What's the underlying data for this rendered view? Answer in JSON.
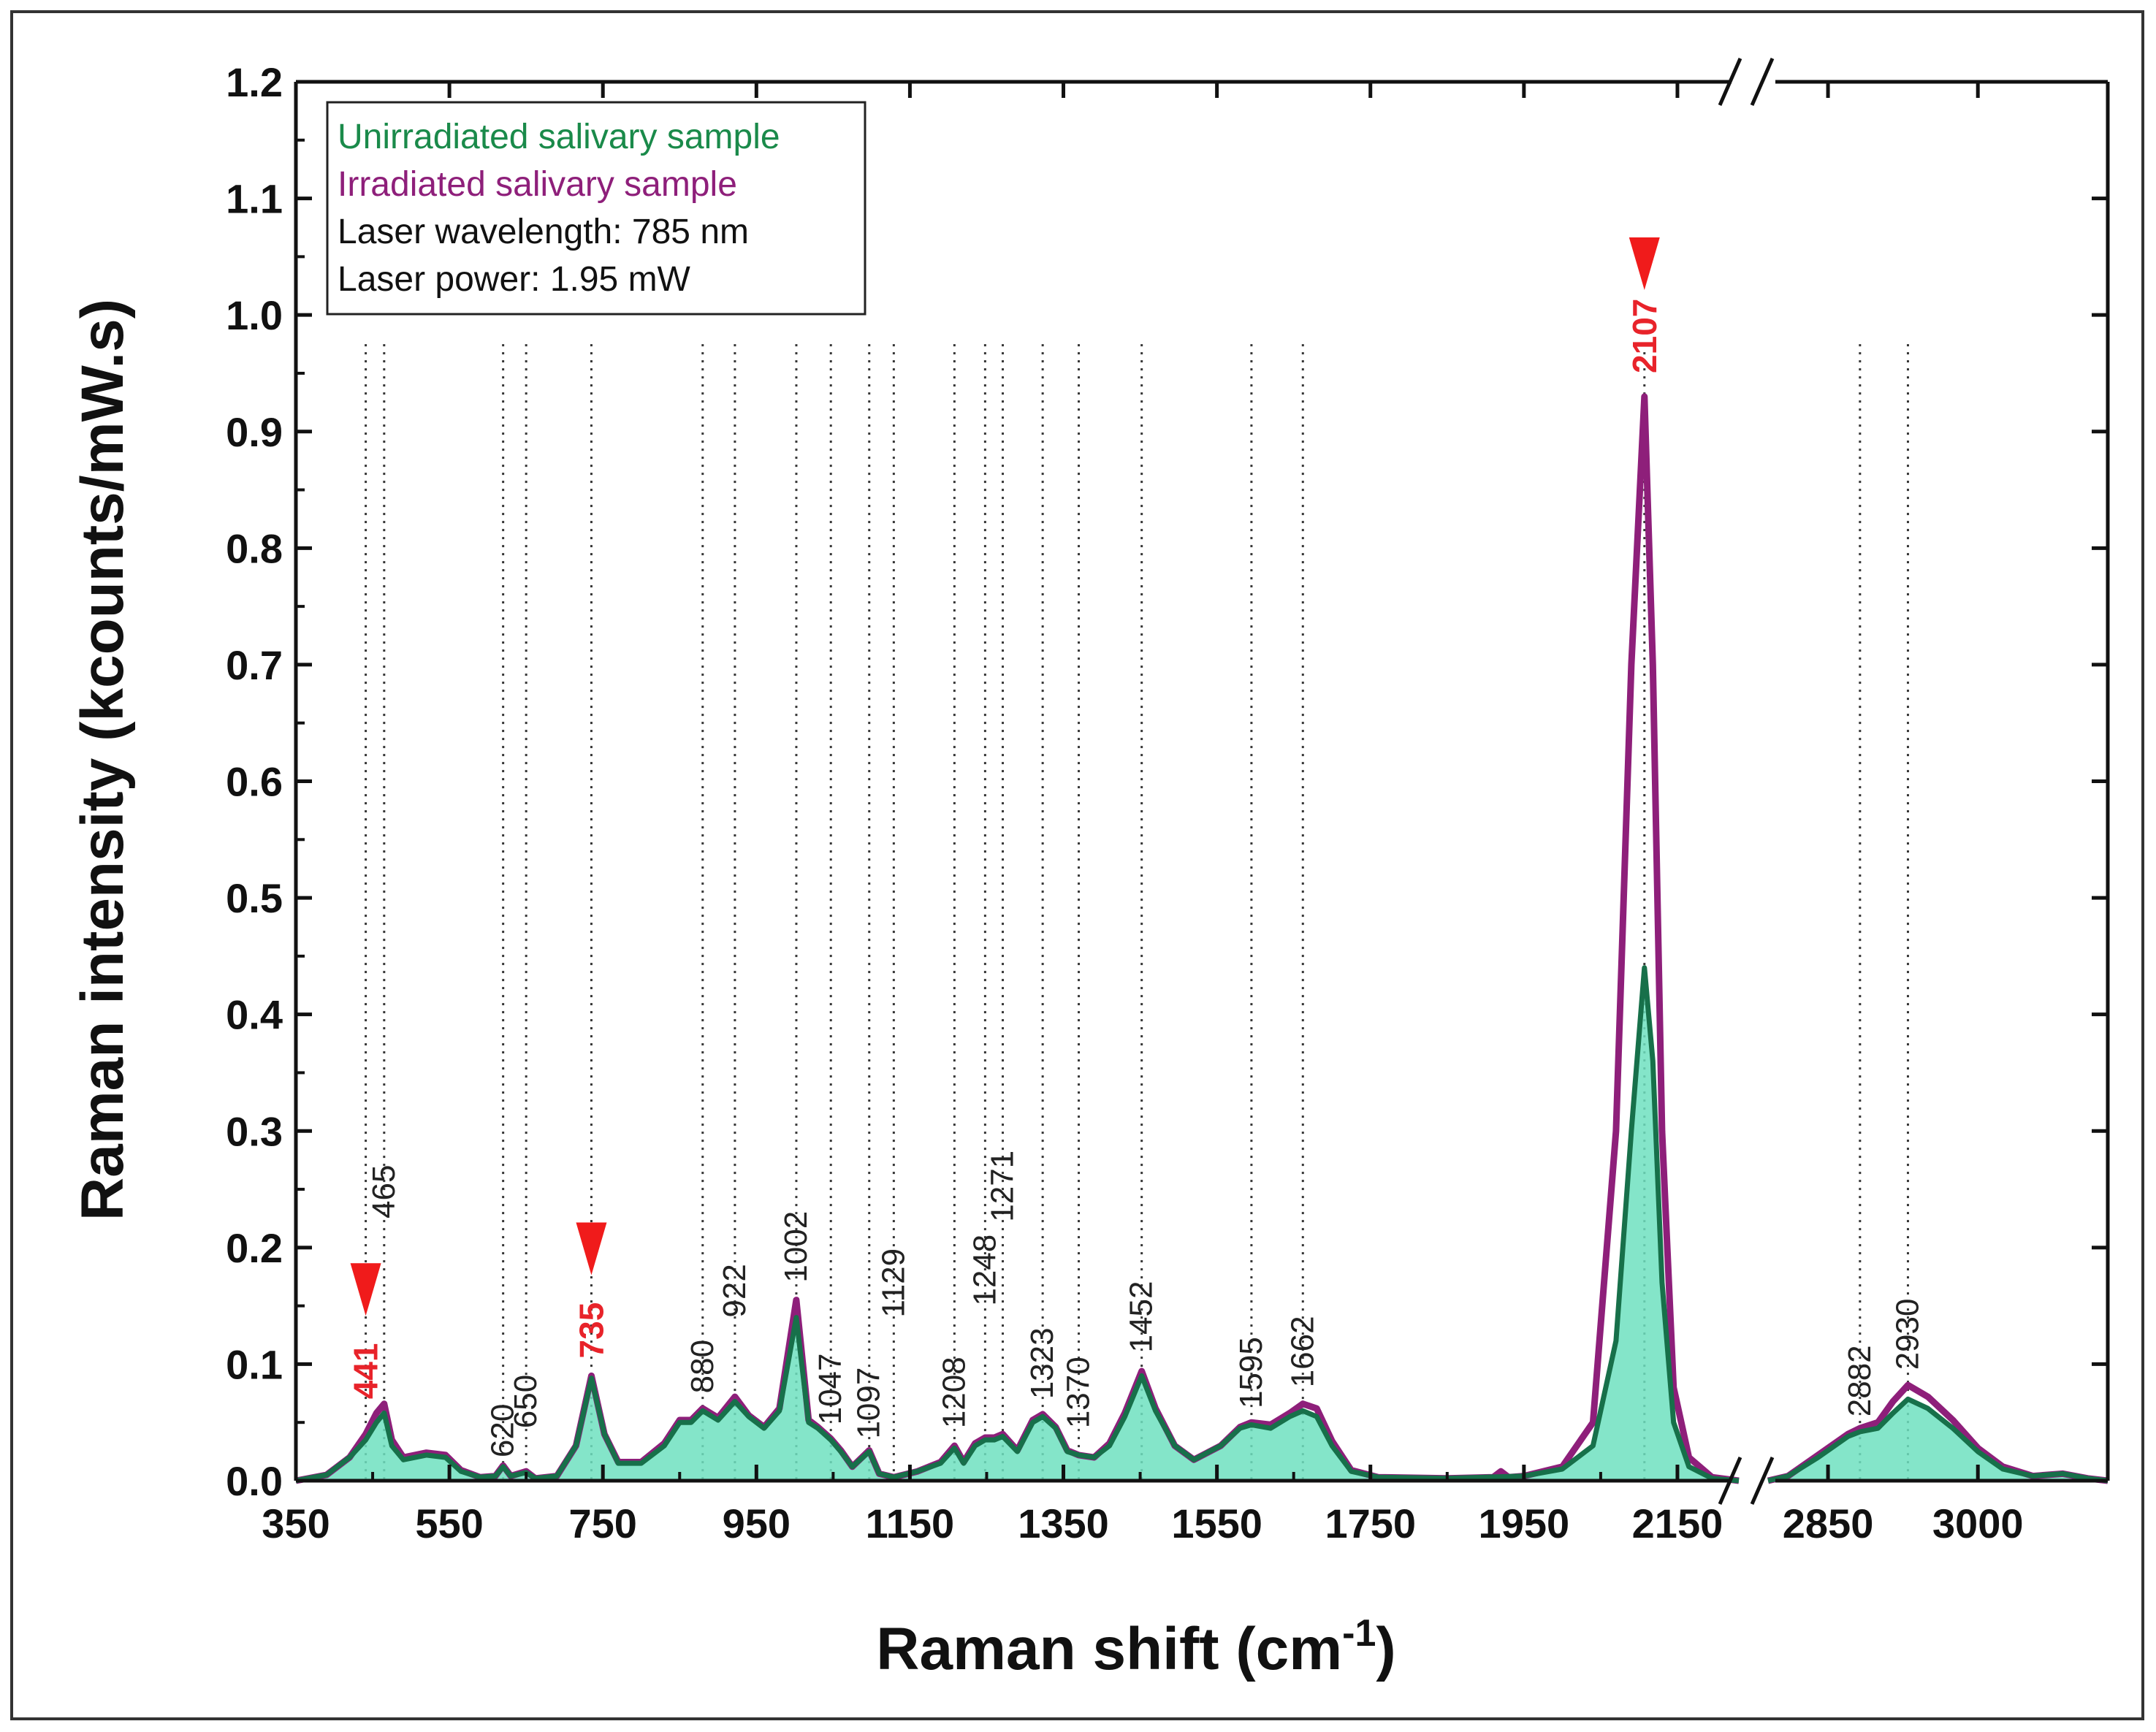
{
  "chart_data": {
    "type": "line",
    "title": "",
    "xlabel": "Raman shift (cm",
    "xlabel_superscript": "-1",
    "xlabel_close": ")",
    "ylabel": "Raman intensity (kcounts/mW.s)",
    "ylim": [
      0,
      1.2
    ],
    "xlim_segment1": [
      350,
      2230
    ],
    "xlim_segment2": [
      2790,
      3130
    ],
    "axis_break_mark": "//",
    "yticks": [
      "0.0",
      "0.1",
      "0.2",
      "0.3",
      "0.4",
      "0.5",
      "0.6",
      "0.7",
      "0.8",
      "0.9",
      "1.0",
      "1.1",
      "1.2"
    ],
    "xticks": [
      "350",
      "550",
      "750",
      "950",
      "1150",
      "1350",
      "1550",
      "1750",
      "1950",
      "2150",
      "2850",
      "3000"
    ],
    "legend": {
      "placement": "top-left",
      "entries": [
        {
          "label": "Unirradiated salivary sample",
          "color": "#1a8a4a"
        },
        {
          "label": "Irradiated salivary sample",
          "color": "#8e1f7a"
        },
        {
          "label": "Laser wavelength: 785 nm",
          "color": "#111111"
        },
        {
          "label": "Laser power: 1.95 mW",
          "color": "#111111"
        }
      ]
    },
    "series": [
      {
        "name": "Unirradiated salivary sample",
        "line_color": "#17704a",
        "fill_color": "#6fe0bf",
        "points": [
          [
            350,
            0
          ],
          [
            390,
            0.005
          ],
          [
            420,
            0.02
          ],
          [
            441,
            0.035
          ],
          [
            455,
            0.05
          ],
          [
            465,
            0.058
          ],
          [
            475,
            0.03
          ],
          [
            490,
            0.018
          ],
          [
            520,
            0.022
          ],
          [
            545,
            0.02
          ],
          [
            565,
            0.008
          ],
          [
            590,
            0.003
          ],
          [
            610,
            0.004
          ],
          [
            620,
            0.012
          ],
          [
            630,
            0.004
          ],
          [
            650,
            0.007
          ],
          [
            662,
            0.002
          ],
          [
            690,
            0.004
          ],
          [
            715,
            0.03
          ],
          [
            735,
            0.088
          ],
          [
            752,
            0.04
          ],
          [
            770,
            0.015
          ],
          [
            800,
            0.015
          ],
          [
            830,
            0.03
          ],
          [
            850,
            0.05
          ],
          [
            865,
            0.05
          ],
          [
            880,
            0.06
          ],
          [
            900,
            0.052
          ],
          [
            922,
            0.068
          ],
          [
            940,
            0.055
          ],
          [
            960,
            0.045
          ],
          [
            980,
            0.06
          ],
          [
            1002,
            0.14
          ],
          [
            1018,
            0.05
          ],
          [
            1030,
            0.045
          ],
          [
            1047,
            0.035
          ],
          [
            1060,
            0.025
          ],
          [
            1075,
            0.012
          ],
          [
            1097,
            0.025
          ],
          [
            1110,
            0.006
          ],
          [
            1129,
            0.003
          ],
          [
            1160,
            0.008
          ],
          [
            1190,
            0.015
          ],
          [
            1208,
            0.028
          ],
          [
            1220,
            0.015
          ],
          [
            1235,
            0.03
          ],
          [
            1248,
            0.035
          ],
          [
            1260,
            0.035
          ],
          [
            1271,
            0.038
          ],
          [
            1290,
            0.025
          ],
          [
            1310,
            0.05
          ],
          [
            1323,
            0.055
          ],
          [
            1340,
            0.045
          ],
          [
            1355,
            0.025
          ],
          [
            1370,
            0.022
          ],
          [
            1390,
            0.02
          ],
          [
            1410,
            0.03
          ],
          [
            1430,
            0.055
          ],
          [
            1452,
            0.09
          ],
          [
            1470,
            0.06
          ],
          [
            1495,
            0.03
          ],
          [
            1520,
            0.018
          ],
          [
            1555,
            0.03
          ],
          [
            1580,
            0.045
          ],
          [
            1595,
            0.048
          ],
          [
            1620,
            0.045
          ],
          [
            1645,
            0.055
          ],
          [
            1662,
            0.06
          ],
          [
            1680,
            0.055
          ],
          [
            1700,
            0.03
          ],
          [
            1725,
            0.008
          ],
          [
            1760,
            0.003
          ],
          [
            1850,
            0.002
          ],
          [
            1950,
            0.004
          ],
          [
            2000,
            0.01
          ],
          [
            2040,
            0.03
          ],
          [
            2070,
            0.12
          ],
          [
            2090,
            0.3
          ],
          [
            2107,
            0.44
          ],
          [
            2118,
            0.36
          ],
          [
            2130,
            0.17
          ],
          [
            2145,
            0.05
          ],
          [
            2165,
            0.012
          ],
          [
            2195,
            0.002
          ],
          [
            2230,
            0
          ],
          [
            2790,
            0
          ],
          [
            2810,
            0.004
          ],
          [
            2840,
            0.02
          ],
          [
            2870,
            0.038
          ],
          [
            2882,
            0.042
          ],
          [
            2900,
            0.045
          ],
          [
            2915,
            0.058
          ],
          [
            2930,
            0.07
          ],
          [
            2950,
            0.062
          ],
          [
            2975,
            0.045
          ],
          [
            3000,
            0.025
          ],
          [
            3025,
            0.01
          ],
          [
            3055,
            0.004
          ],
          [
            3085,
            0.006
          ],
          [
            3110,
            0.002
          ],
          [
            3130,
            0
          ]
        ]
      },
      {
        "name": "Irradiated salivary sample",
        "line_color": "#8e1f7a",
        "points": [
          [
            350,
            0
          ],
          [
            390,
            0.005
          ],
          [
            420,
            0.02
          ],
          [
            441,
            0.04
          ],
          [
            455,
            0.058
          ],
          [
            465,
            0.066
          ],
          [
            475,
            0.035
          ],
          [
            490,
            0.02
          ],
          [
            520,
            0.024
          ],
          [
            545,
            0.022
          ],
          [
            565,
            0.009
          ],
          [
            590,
            0.003
          ],
          [
            610,
            0.004
          ],
          [
            620,
            0.013
          ],
          [
            630,
            0.004
          ],
          [
            650,
            0.008
          ],
          [
            662,
            0.002
          ],
          [
            690,
            0.004
          ],
          [
            715,
            0.03
          ],
          [
            735,
            0.09
          ],
          [
            752,
            0.04
          ],
          [
            770,
            0.016
          ],
          [
            800,
            0.016
          ],
          [
            830,
            0.032
          ],
          [
            850,
            0.052
          ],
          [
            865,
            0.052
          ],
          [
            880,
            0.062
          ],
          [
            900,
            0.054
          ],
          [
            922,
            0.072
          ],
          [
            940,
            0.056
          ],
          [
            960,
            0.046
          ],
          [
            980,
            0.062
          ],
          [
            1002,
            0.155
          ],
          [
            1018,
            0.052
          ],
          [
            1030,
            0.046
          ],
          [
            1047,
            0.036
          ],
          [
            1060,
            0.026
          ],
          [
            1075,
            0.012
          ],
          [
            1097,
            0.026
          ],
          [
            1110,
            0.006
          ],
          [
            1129,
            0.003
          ],
          [
            1160,
            0.008
          ],
          [
            1190,
            0.016
          ],
          [
            1208,
            0.03
          ],
          [
            1220,
            0.016
          ],
          [
            1235,
            0.032
          ],
          [
            1248,
            0.037
          ],
          [
            1260,
            0.037
          ],
          [
            1271,
            0.04
          ],
          [
            1290,
            0.026
          ],
          [
            1310,
            0.052
          ],
          [
            1323,
            0.057
          ],
          [
            1340,
            0.046
          ],
          [
            1355,
            0.026
          ],
          [
            1370,
            0.022
          ],
          [
            1390,
            0.02
          ],
          [
            1410,
            0.032
          ],
          [
            1430,
            0.058
          ],
          [
            1452,
            0.094
          ],
          [
            1470,
            0.062
          ],
          [
            1495,
            0.03
          ],
          [
            1520,
            0.018
          ],
          [
            1555,
            0.03
          ],
          [
            1580,
            0.046
          ],
          [
            1595,
            0.05
          ],
          [
            1620,
            0.048
          ],
          [
            1645,
            0.058
          ],
          [
            1662,
            0.066
          ],
          [
            1680,
            0.062
          ],
          [
            1700,
            0.034
          ],
          [
            1725,
            0.009
          ],
          [
            1760,
            0.003
          ],
          [
            1850,
            0.002
          ],
          [
            1910,
            0.003
          ],
          [
            1920,
            0.008
          ],
          [
            1930,
            0.003
          ],
          [
            1950,
            0.004
          ],
          [
            2000,
            0.012
          ],
          [
            2040,
            0.05
          ],
          [
            2070,
            0.3
          ],
          [
            2090,
            0.7
          ],
          [
            2107,
            0.93
          ],
          [
            2118,
            0.7
          ],
          [
            2130,
            0.3
          ],
          [
            2145,
            0.08
          ],
          [
            2165,
            0.02
          ],
          [
            2195,
            0.003
          ],
          [
            2230,
            0
          ],
          [
            2790,
            0
          ],
          [
            2810,
            0.004
          ],
          [
            2840,
            0.022
          ],
          [
            2870,
            0.04
          ],
          [
            2882,
            0.045
          ],
          [
            2900,
            0.05
          ],
          [
            2915,
            0.068
          ],
          [
            2930,
            0.082
          ],
          [
            2950,
            0.072
          ],
          [
            2975,
            0.052
          ],
          [
            3000,
            0.028
          ],
          [
            3025,
            0.012
          ],
          [
            3055,
            0.004
          ],
          [
            3085,
            0.006
          ],
          [
            3110,
            0.002
          ],
          [
            3130,
            0
          ]
        ]
      }
    ],
    "reference_lines": [
      441,
      465,
      620,
      650,
      735,
      880,
      922,
      1002,
      1047,
      1097,
      1129,
      1208,
      1248,
      1271,
      1323,
      1370,
      1452,
      1595,
      1662,
      2107,
      2882,
      2930
    ],
    "annotations": [
      {
        "x": 441,
        "y": 0.07,
        "text": "441",
        "highlight": true,
        "arrow": true
      },
      {
        "x": 465,
        "y": 0.225,
        "text": "465",
        "highlight": false
      },
      {
        "x": 620,
        "y": 0.02,
        "text": "620",
        "highlight": false
      },
      {
        "x": 650,
        "y": 0.045,
        "text": "650",
        "highlight": false
      },
      {
        "x": 735,
        "y": 0.105,
        "text": "735",
        "highlight": true,
        "arrow": true
      },
      {
        "x": 880,
        "y": 0.075,
        "text": "880",
        "highlight": false
      },
      {
        "x": 922,
        "y": 0.14,
        "text": "922",
        "highlight": false
      },
      {
        "x": 1002,
        "y": 0.17,
        "text": "1002",
        "highlight": false
      },
      {
        "x": 1047,
        "y": 0.048,
        "text": "1047",
        "highlight": false
      },
      {
        "x": 1097,
        "y": 0.036,
        "text": "1097",
        "highlight": false
      },
      {
        "x": 1129,
        "y": 0.14,
        "text": "1129",
        "highlight": false
      },
      {
        "x": 1208,
        "y": 0.045,
        "text": "1208",
        "highlight": false
      },
      {
        "x": 1248,
        "y": 0.15,
        "text": "1248",
        "highlight": false
      },
      {
        "x": 1271,
        "y": 0.222,
        "text": "1271",
        "highlight": false
      },
      {
        "x": 1323,
        "y": 0.07,
        "text": "1323",
        "highlight": false
      },
      {
        "x": 1370,
        "y": 0.045,
        "text": "1370",
        "highlight": false
      },
      {
        "x": 1452,
        "y": 0.11,
        "text": "1452",
        "highlight": false
      },
      {
        "x": 1595,
        "y": 0.062,
        "text": "1595",
        "highlight": false
      },
      {
        "x": 1662,
        "y": 0.08,
        "text": "1662",
        "highlight": false
      },
      {
        "x": 2107,
        "y": 0.95,
        "text": "2107",
        "highlight": true,
        "arrow": true
      },
      {
        "x": 2882,
        "y": 0.055,
        "text": "2882",
        "highlight": false
      },
      {
        "x": 2930,
        "y": 0.095,
        "text": "2930",
        "highlight": false
      }
    ]
  }
}
